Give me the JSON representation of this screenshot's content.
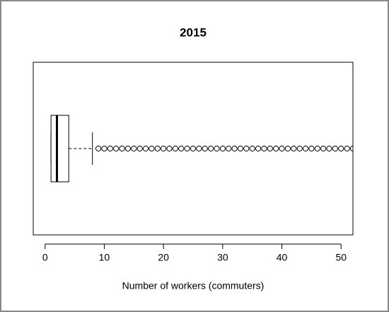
{
  "chart_data": {
    "type": "box",
    "title": "2015",
    "x_label": "Number of workers (commuters)",
    "orientation": "horizontal",
    "min": 1,
    "q1": 1,
    "median": 2,
    "q3": 4,
    "max": 8,
    "outliers": [
      9,
      10,
      11,
      12,
      13,
      14,
      15,
      16,
      17,
      18,
      19,
      20,
      21,
      22,
      23,
      24,
      25,
      26,
      27,
      28,
      29,
      30,
      31,
      32,
      33,
      34,
      35,
      36,
      37,
      38,
      39,
      40,
      41,
      42,
      43,
      44,
      45,
      46,
      47,
      48,
      49,
      50,
      51,
      52
    ],
    "xlim": [
      -2,
      52
    ],
    "xticks": [
      0,
      10,
      20,
      30,
      40,
      50
    ],
    "color": "#000000"
  }
}
